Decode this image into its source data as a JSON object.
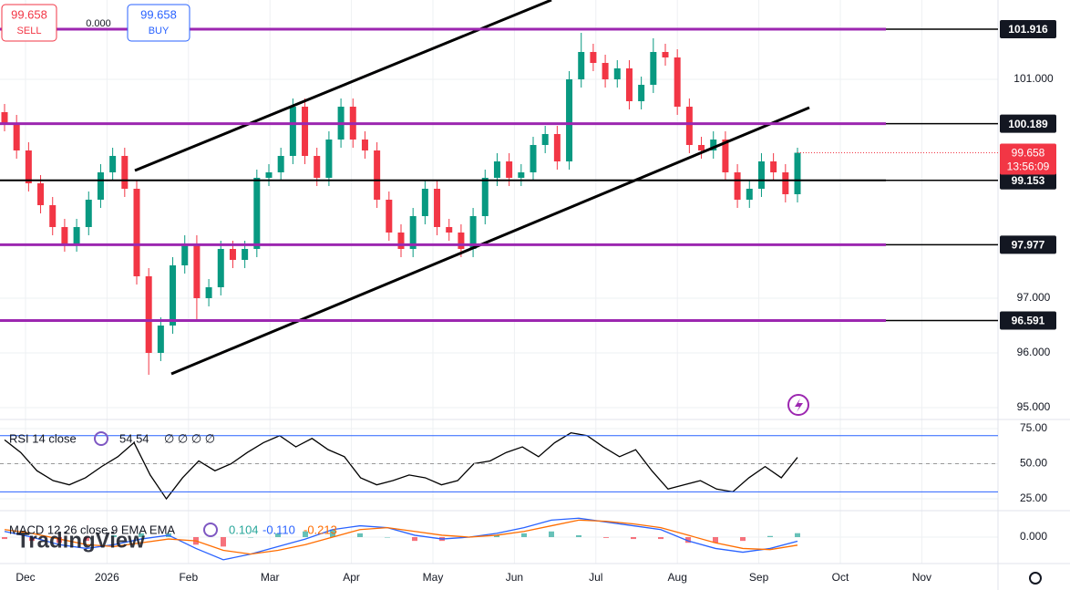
{
  "trade_panel": {
    "sell_price": "99.658",
    "sell": "SELL",
    "spread": "0.000",
    "buy_price": "99.658",
    "buy": "BUY"
  },
  "watermark": "TradingView",
  "chart_data": [
    {
      "type": "candlestick",
      "x_labels": [
        "Dec",
        "2026",
        "Feb",
        "Mar",
        "Apr",
        "May",
        "Jun",
        "Jul",
        "Aug",
        "Sep",
        "Oct",
        "Nov"
      ],
      "open": [
        100.4,
        100.2,
        99.7,
        99.1,
        98.7,
        98.3,
        98.0,
        98.3,
        98.8,
        99.3,
        99.6,
        99.0,
        97.4,
        96.0,
        96.5,
        97.6,
        98.0,
        97.0,
        97.2,
        97.9,
        97.7,
        97.9,
        99.2,
        99.3,
        99.6,
        100.5,
        99.6,
        99.2,
        99.9,
        100.5,
        99.9,
        99.7,
        98.8,
        98.2,
        97.9,
        98.5,
        99.0,
        98.3,
        98.2,
        97.9,
        98.5,
        99.2,
        99.5,
        99.2,
        99.3,
        99.8,
        100.0,
        99.5,
        101.0,
        101.5,
        101.3,
        101.0,
        101.2,
        100.6,
        100.9,
        101.5,
        101.4,
        100.5,
        99.8,
        99.7,
        99.9,
        99.3,
        98.8,
        99.0,
        99.5,
        99.3,
        98.9
      ],
      "high": [
        100.55,
        100.35,
        99.85,
        99.25,
        98.85,
        98.45,
        98.45,
        98.95,
        99.45,
        99.75,
        99.75,
        99.15,
        97.55,
        96.65,
        97.75,
        98.15,
        98.15,
        97.35,
        98.05,
        98.05,
        98.05,
        99.35,
        99.45,
        99.75,
        100.65,
        100.65,
        99.75,
        100.05,
        100.65,
        100.65,
        100.05,
        99.85,
        98.95,
        98.35,
        98.65,
        99.15,
        99.15,
        98.45,
        98.35,
        98.65,
        99.35,
        99.65,
        99.65,
        99.45,
        99.95,
        100.15,
        100.15,
        101.15,
        101.85,
        101.65,
        101.45,
        101.35,
        101.35,
        101.05,
        101.75,
        101.65,
        101.55,
        100.65,
        99.95,
        100.05,
        100.05,
        99.45,
        99.15,
        99.65,
        99.65,
        99.45,
        99.75
      ],
      "low": [
        100.05,
        99.55,
        98.95,
        98.55,
        98.15,
        97.85,
        97.85,
        98.15,
        98.65,
        99.15,
        98.85,
        97.25,
        95.6,
        95.85,
        96.35,
        97.45,
        96.6,
        96.85,
        97.05,
        97.55,
        97.55,
        97.75,
        99.05,
        99.15,
        99.45,
        99.45,
        99.05,
        99.05,
        99.75,
        99.75,
        99.55,
        98.65,
        98.05,
        97.75,
        97.75,
        98.35,
        98.15,
        98.05,
        97.75,
        97.75,
        98.35,
        99.05,
        99.05,
        99.05,
        99.15,
        99.65,
        99.35,
        99.35,
        100.85,
        101.15,
        100.85,
        100.85,
        100.45,
        100.45,
        100.75,
        101.25,
        100.35,
        99.65,
        99.55,
        99.55,
        99.15,
        98.65,
        98.65,
        98.85,
        99.15,
        98.75,
        98.75
      ],
      "close": [
        100.2,
        99.7,
        99.1,
        98.7,
        98.3,
        98.0,
        98.3,
        98.8,
        99.3,
        99.6,
        99.0,
        97.4,
        96.0,
        96.5,
        97.6,
        98.0,
        97.0,
        97.2,
        97.9,
        97.7,
        97.9,
        99.2,
        99.3,
        99.6,
        100.5,
        99.6,
        99.2,
        99.9,
        100.5,
        99.9,
        99.7,
        98.8,
        98.2,
        97.9,
        98.5,
        99.0,
        98.3,
        98.2,
        97.9,
        98.5,
        99.2,
        99.5,
        99.2,
        99.3,
        99.8,
        100.0,
        99.5,
        101.0,
        101.5,
        101.3,
        101.0,
        101.2,
        100.6,
        100.9,
        101.5,
        101.4,
        100.5,
        99.8,
        99.7,
        99.9,
        99.3,
        98.8,
        99.0,
        99.5,
        99.3,
        98.9,
        99.658
      ],
      "up_color": "#089981",
      "down_color": "#f23645",
      "ylim": [
        94.783,
        102.45
      ],
      "yticks": [
        {
          "value": 95,
          "label": "95.000"
        },
        {
          "value": 96,
          "label": "96.000"
        },
        {
          "value": 97,
          "label": "97.000"
        },
        {
          "value": 101,
          "label": "101.000"
        }
      ],
      "levels": [
        {
          "value": 101.916,
          "color": "#9c27b0"
        },
        {
          "value": 100.189,
          "color": "#9c27b0"
        },
        {
          "value": 99.153,
          "color": "#000000"
        },
        {
          "value": 97.977,
          "color": "#9c27b0"
        },
        {
          "value": 96.591,
          "color": "#9c27b0"
        }
      ],
      "last_price": 99.658,
      "countdown": "13:56:09",
      "last_color": "#f23645"
    },
    {
      "type": "line",
      "title": "RSI 14 close",
      "extra": "∅ ∅ ∅ ∅",
      "color": "#000000",
      "values": [
        67,
        58,
        45,
        38,
        35,
        40,
        48,
        55,
        65,
        42,
        25,
        40,
        52,
        45,
        50,
        58,
        65,
        70,
        62,
        68,
        60,
        55,
        40,
        35,
        38,
        42,
        40,
        35,
        38,
        50,
        52,
        58,
        62,
        55,
        65,
        72,
        70,
        62,
        55,
        60,
        45,
        32,
        35,
        38,
        32,
        30,
        40,
        48,
        40,
        54.54
      ],
      "ylim": [
        16.6,
        81.5
      ],
      "yticks": [
        {
          "value": 25,
          "label": "25.00"
        },
        {
          "value": 50,
          "label": "50.00"
        },
        {
          "value": 75,
          "label": "75.00"
        }
      ],
      "band": [
        30,
        70
      ],
      "band_color": "#2962ff"
    },
    {
      "type": "macd",
      "title": "MACD 12 26 close 9 EMA EMA",
      "series": [
        {
          "name": "Histogram",
          "color": "#26a69a",
          "values": [
            -0.05,
            -0.1,
            -0.15,
            -0.1,
            0.05,
            0.1,
            0.1,
            -0.2,
            -0.25,
            0.0,
            0.1,
            0.15,
            0.2,
            0.1,
            0.0,
            -0.1,
            -0.1,
            0.0,
            0.05,
            0.1,
            0.15,
            0.05,
            -0.02,
            -0.05,
            -0.05,
            -0.15,
            -0.15,
            -0.1,
            0.03,
            0.104
          ],
          "value_labels": "0.104"
        },
        {
          "name": "MACD",
          "color": "#2962ff",
          "values": [
            0.15,
            0.0,
            -0.2,
            -0.3,
            -0.2,
            -0.05,
            0.05,
            -0.3,
            -0.6,
            -0.45,
            -0.25,
            -0.05,
            0.2,
            0.3,
            0.25,
            0.05,
            -0.05,
            0.0,
            0.1,
            0.25,
            0.45,
            0.5,
            0.4,
            0.3,
            0.2,
            -0.1,
            -0.3,
            -0.4,
            -0.3,
            -0.11
          ],
          "value_labels": "-0.110"
        },
        {
          "name": "Signal",
          "color": "#ff6d00",
          "values": [
            0.2,
            0.1,
            -0.05,
            -0.2,
            -0.25,
            -0.15,
            -0.05,
            -0.1,
            -0.35,
            -0.45,
            -0.35,
            -0.2,
            0.0,
            0.2,
            0.25,
            0.15,
            0.05,
            0.0,
            0.05,
            0.15,
            0.3,
            0.45,
            0.42,
            0.35,
            0.25,
            0.05,
            -0.15,
            -0.3,
            -0.33,
            -0.213
          ],
          "value_labels": "-0.213"
        }
      ],
      "neg_color": "#f23645",
      "ylim": [
        -0.7,
        0.7
      ],
      "yticks": [
        {
          "value": 0,
          "label": "0.000"
        }
      ]
    }
  ]
}
